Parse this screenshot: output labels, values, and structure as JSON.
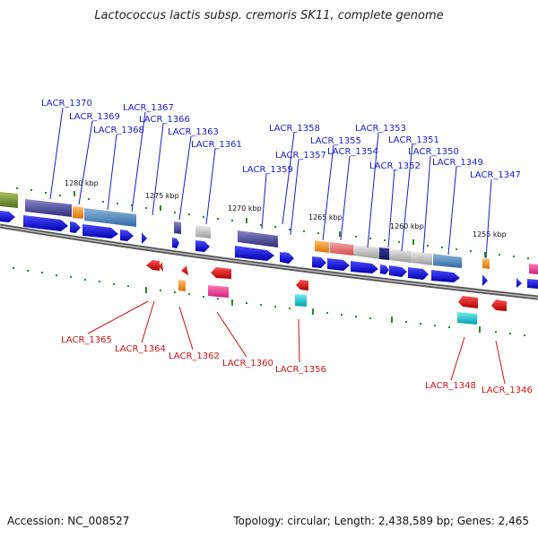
{
  "title": "Lactococcus lactis subsp. cremoris SK11, complete genome",
  "accession_label": "Accession: NC_008527",
  "summary_label": "Topology: circular; Length: 2,438,589 bp; Genes: 2,465",
  "ticks": [
    "1280 kbp",
    "1275 kbp",
    "1270 kbp",
    "1265 kbp",
    "1260 kbp",
    "1255 kbp"
  ],
  "forward_genes": [
    "LACR_1370",
    "LACR_1369",
    "LACR_1368",
    "LACR_1367",
    "LACR_1366",
    "LACR_1363",
    "LACR_1361",
    "LACR_1358",
    "LACR_1359",
    "LACR_1357",
    "LACR_1355",
    "LACR_1354",
    "LACR_1353",
    "LACR_1352",
    "LACR_1351",
    "LACR_1350",
    "LACR_1349",
    "LACR_1347"
  ],
  "reverse_genes": [
    "LACR_1365",
    "LACR_1364",
    "LACR_1362",
    "LACR_1360",
    "LACR_1356",
    "LACR_1348",
    "LACR_1346"
  ],
  "colors": {
    "forward_label": "#1a1acc",
    "reverse_label": "#cc1111",
    "backbone": "#777777",
    "tick_mark": "#2a8a2a"
  }
}
